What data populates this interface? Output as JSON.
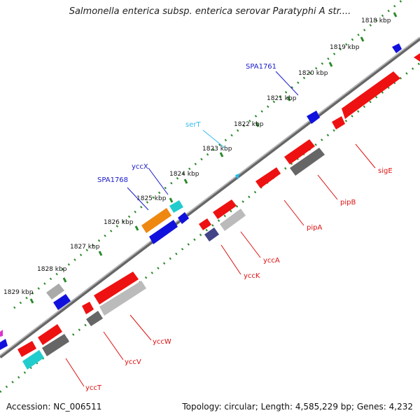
{
  "title": "Salmonella enterica subsp. enterica serovar Paratyphi A str....",
  "footer": {
    "accession": "Accession: NC_006511",
    "topology": "Topology: circular; Length: 4,585,229 bp; Genes: 4,232"
  },
  "ticks": [
    "1818 kbp",
    "1819 kbp",
    "1820 kbp",
    "1821 kbp",
    "1822 kbp",
    "1823 kbp",
    "1824 kbp",
    "1825 kbp",
    "1826 kbp",
    "1827 kbp",
    "1828 kbp",
    "1829 kbp"
  ],
  "labels": [
    {
      "text": "SPA1761",
      "color": "#1a1acc"
    },
    {
      "text": "serT",
      "color": "#33bbee"
    },
    {
      "text": "yccX",
      "color": "#1a1acc"
    },
    {
      "text": "SPA1768",
      "color": "#1a1acc"
    },
    {
      "text": "sigE",
      "color": "#dd1111"
    },
    {
      "text": "pipB",
      "color": "#dd1111"
    },
    {
      "text": "pipA",
      "color": "#dd1111"
    },
    {
      "text": "yccA",
      "color": "#dd1111"
    },
    {
      "text": "yccK",
      "color": "#dd1111"
    },
    {
      "text": "yccW",
      "color": "#dd1111"
    },
    {
      "text": "yccV",
      "color": "#dd1111"
    },
    {
      "text": "yccT",
      "color": "#dd1111"
    }
  ],
  "colors": {
    "tick_dots": "#2a8a2a",
    "backbone": "#888888",
    "forward_gene": "#ee1111",
    "blue_gene": "#1111dd",
    "cyan_gene": "#22cccc",
    "orange_gene": "#ee8811",
    "grey_gene": "#bbbbbb",
    "darkgrey_gene": "#666666",
    "purple_gene": "#444488"
  }
}
